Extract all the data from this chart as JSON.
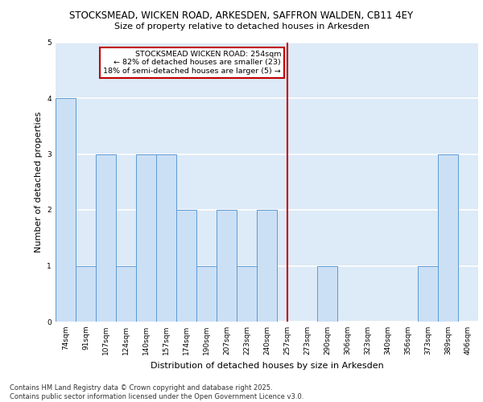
{
  "title_line1": "STOCKSMEAD, WICKEN ROAD, ARKESDEN, SAFFRON WALDEN, CB11 4EY",
  "title_line2": "Size of property relative to detached houses in Arkesden",
  "xlabel": "Distribution of detached houses by size in Arkesden",
  "ylabel": "Number of detached properties",
  "categories": [
    "74sqm",
    "91sqm",
    "107sqm",
    "124sqm",
    "140sqm",
    "157sqm",
    "174sqm",
    "190sqm",
    "207sqm",
    "223sqm",
    "240sqm",
    "257sqm",
    "273sqm",
    "290sqm",
    "306sqm",
    "323sqm",
    "340sqm",
    "356sqm",
    "373sqm",
    "389sqm",
    "406sqm"
  ],
  "values": [
    4,
    1,
    3,
    1,
    3,
    3,
    2,
    1,
    2,
    1,
    2,
    0,
    0,
    1,
    0,
    0,
    0,
    0,
    1,
    3,
    0
  ],
  "bar_color": "#cce0f5",
  "bar_edgecolor": "#5b9bd5",
  "reference_line_index": 11,
  "ref_line_color": "#c00000",
  "annotation_text": "STOCKSMEAD WICKEN ROAD: 254sqm\n← 82% of detached houses are smaller (23)\n18% of semi-detached houses are larger (5) →",
  "annotation_box_color": "#c00000",
  "ylim": [
    0,
    5
  ],
  "yticks": [
    0,
    1,
    2,
    3,
    4,
    5
  ],
  "footer_text": "Contains HM Land Registry data © Crown copyright and database right 2025.\nContains public sector information licensed under the Open Government Licence v3.0.",
  "bg_color": "#ddeaf7",
  "grid_color": "#ffffff",
  "title_fontsize": 8.5,
  "subtitle_fontsize": 8.0,
  "tick_fontsize": 6.5,
  "label_fontsize": 8.0,
  "annotation_fontsize": 6.8,
  "footer_fontsize": 6.0
}
